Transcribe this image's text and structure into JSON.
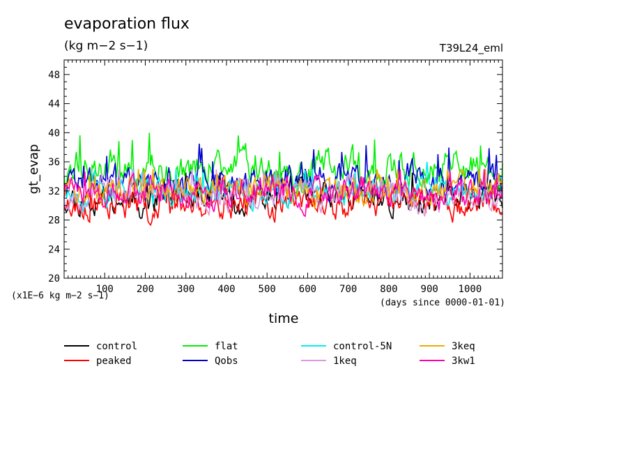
{
  "header": {
    "title": "evaporation flux",
    "units": "(kg m−2 s−1)",
    "run": "T39L24_eml"
  },
  "chart_data": {
    "type": "line",
    "title": "evaporation flux",
    "subtitle": "(kg m−2 s−1)",
    "ylabel": "gt_evap",
    "xlabel": "time",
    "y_scale_note": "(x1E−6 kg m−2 s−1)",
    "x_units_note": "(days since 0000-01-01)",
    "xlim": [
      0,
      1080
    ],
    "ylim": [
      20,
      50
    ],
    "x_ticks": [
      100,
      200,
      300,
      400,
      500,
      600,
      700,
      800,
      900,
      1000
    ],
    "x_tick_labels": [
      "100",
      "200",
      "300",
      "400",
      "500",
      "600",
      "700",
      "800",
      "900",
      "1000"
    ],
    "y_ticks": [
      20,
      24,
      28,
      32,
      36,
      40,
      44,
      48
    ],
    "y_tick_labels": [
      "20",
      "24",
      "28",
      "32",
      "36",
      "40",
      "44",
      "48"
    ],
    "legend_placement": "below",
    "grid": false,
    "series": [
      {
        "name": "control",
        "color": "#000000",
        "mean": 31.0,
        "spread": 1.6,
        "min": 28.2,
        "max": 34.5,
        "seed": 11
      },
      {
        "name": "peaked",
        "color": "#ff0000",
        "mean": 30.2,
        "spread": 1.5,
        "min": 27.2,
        "max": 33.5,
        "seed": 23
      },
      {
        "name": "flat",
        "color": "#00ee00",
        "mean": 34.8,
        "spread": 1.9,
        "min": 31.0,
        "max": 40.0,
        "seed": 37
      },
      {
        "name": "Qobs",
        "color": "#0000cc",
        "mean": 33.3,
        "spread": 1.7,
        "min": 30.0,
        "max": 38.5,
        "seed": 41
      },
      {
        "name": "control-5N",
        "color": "#00eeee",
        "mean": 32.2,
        "spread": 1.6,
        "min": 28.5,
        "max": 36.0,
        "seed": 53
      },
      {
        "name": "1keq",
        "color": "#dd99dd",
        "mean": 31.7,
        "spread": 1.5,
        "min": 28.5,
        "max": 35.0,
        "seed": 67
      },
      {
        "name": "3keq",
        "color": "#eeaa00",
        "mean": 32.0,
        "spread": 1.5,
        "min": 28.2,
        "max": 35.0,
        "seed": 71
      },
      {
        "name": "3kw1",
        "color": "#ff00aa",
        "mean": 31.8,
        "spread": 1.6,
        "min": 28.5,
        "max": 35.0,
        "seed": 89
      }
    ]
  }
}
